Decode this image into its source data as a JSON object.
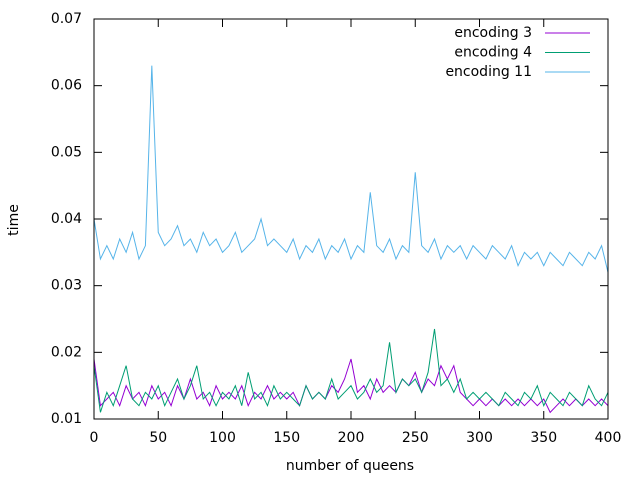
{
  "chart_data": {
    "type": "line",
    "x_label": "number of queens",
    "y_label": "time",
    "x": [
      0,
      5,
      10,
      15,
      20,
      25,
      30,
      35,
      40,
      45,
      50,
      55,
      60,
      65,
      70,
      75,
      80,
      85,
      90,
      95,
      100,
      105,
      110,
      115,
      120,
      125,
      130,
      135,
      140,
      145,
      150,
      155,
      160,
      165,
      170,
      175,
      180,
      185,
      190,
      195,
      200,
      205,
      210,
      215,
      220,
      225,
      230,
      235,
      240,
      245,
      250,
      255,
      260,
      265,
      270,
      275,
      280,
      285,
      290,
      295,
      300,
      305,
      310,
      315,
      320,
      325,
      330,
      335,
      340,
      345,
      350,
      355,
      360,
      365,
      370,
      375,
      380,
      385,
      390,
      395,
      400
    ],
    "series": [
      {
        "name": "encoding 3",
        "color": "#9400d3",
        "values": [
          0.019,
          0.012,
          0.013,
          0.014,
          0.012,
          0.015,
          0.013,
          0.014,
          0.012,
          0.015,
          0.013,
          0.014,
          0.012,
          0.015,
          0.013,
          0.016,
          0.013,
          0.014,
          0.012,
          0.015,
          0.013,
          0.014,
          0.013,
          0.015,
          0.012,
          0.014,
          0.013,
          0.015,
          0.013,
          0.014,
          0.013,
          0.014,
          0.012,
          0.015,
          0.013,
          0.014,
          0.013,
          0.015,
          0.014,
          0.016,
          0.019,
          0.014,
          0.015,
          0.013,
          0.016,
          0.014,
          0.015,
          0.014,
          0.016,
          0.015,
          0.017,
          0.014,
          0.016,
          0.015,
          0.018,
          0.016,
          0.018,
          0.014,
          0.013,
          0.012,
          0.013,
          0.012,
          0.013,
          0.012,
          0.013,
          0.012,
          0.013,
          0.012,
          0.013,
          0.012,
          0.013,
          0.011,
          0.012,
          0.013,
          0.012,
          0.013,
          0.012,
          0.013,
          0.012,
          0.013,
          0.012
        ]
      },
      {
        "name": "encoding 4",
        "color": "#009e73",
        "values": [
          0.018,
          0.011,
          0.014,
          0.012,
          0.015,
          0.018,
          0.013,
          0.012,
          0.014,
          0.013,
          0.015,
          0.012,
          0.014,
          0.016,
          0.013,
          0.015,
          0.018,
          0.013,
          0.014,
          0.012,
          0.014,
          0.013,
          0.015,
          0.012,
          0.017,
          0.013,
          0.014,
          0.012,
          0.015,
          0.013,
          0.014,
          0.013,
          0.012,
          0.015,
          0.013,
          0.014,
          0.013,
          0.016,
          0.013,
          0.014,
          0.015,
          0.013,
          0.014,
          0.016,
          0.014,
          0.015,
          0.0215,
          0.014,
          0.016,
          0.015,
          0.016,
          0.014,
          0.017,
          0.0235,
          0.015,
          0.016,
          0.014,
          0.016,
          0.013,
          0.014,
          0.013,
          0.014,
          0.013,
          0.012,
          0.014,
          0.013,
          0.012,
          0.014,
          0.013,
          0.015,
          0.012,
          0.014,
          0.013,
          0.012,
          0.014,
          0.013,
          0.012,
          0.015,
          0.013,
          0.012,
          0.014
        ]
      },
      {
        "name": "encoding 11",
        "color": "#56b4e9",
        "values": [
          0.04,
          0.034,
          0.036,
          0.034,
          0.037,
          0.035,
          0.038,
          0.034,
          0.036,
          0.063,
          0.038,
          0.036,
          0.037,
          0.039,
          0.036,
          0.037,
          0.035,
          0.038,
          0.036,
          0.037,
          0.035,
          0.036,
          0.038,
          0.035,
          0.036,
          0.037,
          0.04,
          0.036,
          0.037,
          0.036,
          0.035,
          0.037,
          0.034,
          0.036,
          0.035,
          0.037,
          0.034,
          0.036,
          0.035,
          0.037,
          0.034,
          0.036,
          0.035,
          0.044,
          0.036,
          0.035,
          0.037,
          0.034,
          0.036,
          0.035,
          0.047,
          0.036,
          0.035,
          0.037,
          0.034,
          0.036,
          0.035,
          0.036,
          0.034,
          0.036,
          0.035,
          0.034,
          0.036,
          0.035,
          0.034,
          0.036,
          0.033,
          0.035,
          0.034,
          0.035,
          0.033,
          0.035,
          0.034,
          0.033,
          0.035,
          0.034,
          0.033,
          0.035,
          0.034,
          0.036,
          0.032
        ]
      }
    ],
    "xlim": [
      0,
      400
    ],
    "xticks": [
      0,
      50,
      100,
      150,
      200,
      250,
      300,
      350,
      400
    ],
    "ylim": [
      0.01,
      0.07
    ],
    "yticks": [
      0.01,
      0.02,
      0.03,
      0.04,
      0.05,
      0.06,
      0.07
    ],
    "ytick_color": "#9400d3",
    "legend": "top-right"
  }
}
